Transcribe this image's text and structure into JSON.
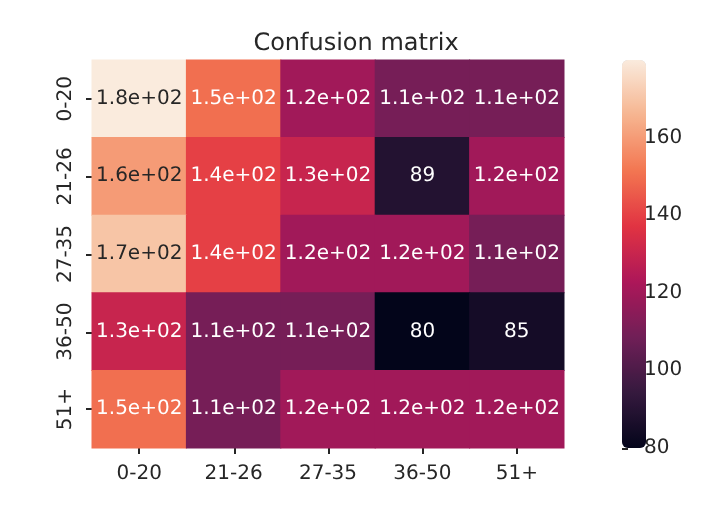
{
  "chart_data": {
    "type": "heatmap",
    "title": "Confusion matrix",
    "categories": [
      "0-20",
      "21-26",
      "27-35",
      "36-50",
      "51+"
    ],
    "y_categories": [
      "0-20",
      "21-26",
      "27-35",
      "36-50",
      "51+"
    ],
    "cells": [
      [
        180,
        150,
        120,
        110,
        110
      ],
      [
        160,
        140,
        130,
        89,
        120
      ],
      [
        170,
        140,
        120,
        120,
        110
      ],
      [
        130,
        110,
        110,
        80,
        85
      ],
      [
        150,
        110,
        120,
        120,
        120
      ]
    ],
    "cell_labels": [
      [
        "1.8e+02",
        "1.5e+02",
        "1.2e+02",
        "1.1e+02",
        "1.1e+02"
      ],
      [
        "1.6e+02",
        "1.4e+02",
        "1.3e+02",
        "89",
        "1.2e+02"
      ],
      [
        "1.7e+02",
        "1.4e+02",
        "1.2e+02",
        "1.2e+02",
        "1.1e+02"
      ],
      [
        "1.3e+02",
        "1.1e+02",
        "1.1e+02",
        "80",
        "85"
      ],
      [
        "1.5e+02",
        "1.1e+02",
        "1.2e+02",
        "1.2e+02",
        "1.2e+02"
      ]
    ],
    "clim": [
      80,
      180
    ],
    "cticks": [
      80,
      100,
      120,
      140,
      160
    ]
  }
}
